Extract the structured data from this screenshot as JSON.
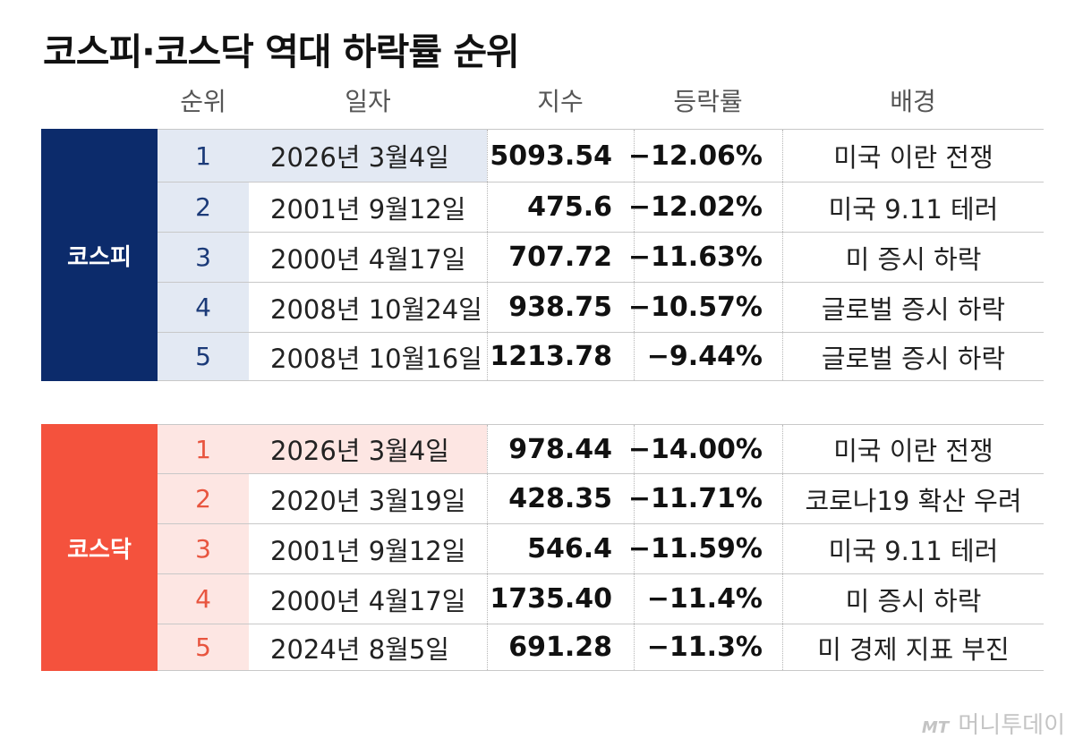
{
  "title": "코스피·코스닥 역대 하락률 순위",
  "headers": {
    "rank": "순위",
    "date": "일자",
    "index": "지수",
    "change": "등락률",
    "background": "배경"
  },
  "kospi": {
    "label": "코스피",
    "rows": [
      {
        "rank": "1",
        "date": "2026년 3월4일",
        "index": "5093.54",
        "change": "−12.06%",
        "background": "미국 이란 전쟁"
      },
      {
        "rank": "2",
        "date": "2001년 9월12일",
        "index": "475.6",
        "change": "−12.02%",
        "background": "미국 9.11 테러"
      },
      {
        "rank": "3",
        "date": "2000년 4월17일",
        "index": "707.72",
        "change": "−11.63%",
        "background": "미 증시 하락"
      },
      {
        "rank": "4",
        "date": "2008년 10월24일",
        "index": "938.75",
        "change": "−10.57%",
        "background": "글로벌 증시 하락"
      },
      {
        "rank": "5",
        "date": "2008년 10월16일",
        "index": "1213.78",
        "change": "−9.44%",
        "background": "글로벌 증시 하락"
      }
    ]
  },
  "kosdaq": {
    "label": "코스닥",
    "rows": [
      {
        "rank": "1",
        "date": "2026년 3월4일",
        "index": "978.44",
        "change": "−14.00%",
        "background": "미국 이란 전쟁"
      },
      {
        "rank": "2",
        "date": "2020년 3월19일",
        "index": "428.35",
        "change": "−11.71%",
        "background": "코로나19 확산 우려"
      },
      {
        "rank": "3",
        "date": "2001년 9월12일",
        "index": "546.4",
        "change": "−11.59%",
        "background": "미국 9.11 테러"
      },
      {
        "rank": "4",
        "date": "2000년 4월17일",
        "index": "1735.40",
        "change": "−11.4%",
        "background": "미 증시 하락"
      },
      {
        "rank": "5",
        "date": "2024년 8월5일",
        "index": "691.28",
        "change": "−11.3%",
        "background": "미 경제 지표 부진"
      }
    ]
  },
  "logo": {
    "mark": "MT",
    "name": "머니투데이"
  },
  "colors": {
    "kospi": "#0c2b6b",
    "kosdaq": "#f4523d",
    "kospi_light": "#e3e9f3",
    "kosdaq_light": "#fde6e3"
  }
}
